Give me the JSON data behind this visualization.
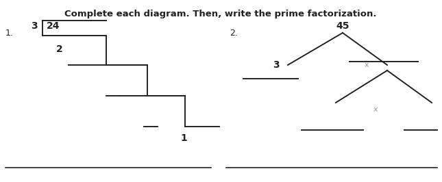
{
  "title": "Complete each diagram. Then, write the prime factorization.",
  "title_fontsize": 9.5,
  "title_fontweight": "bold",
  "bg_color": "#ffffff",
  "text_color": "#222222",
  "label1_num": "1.",
  "label2_num": "2.",
  "fig_w": 6.45,
  "fig_h": 2.66,
  "dpi": 100
}
